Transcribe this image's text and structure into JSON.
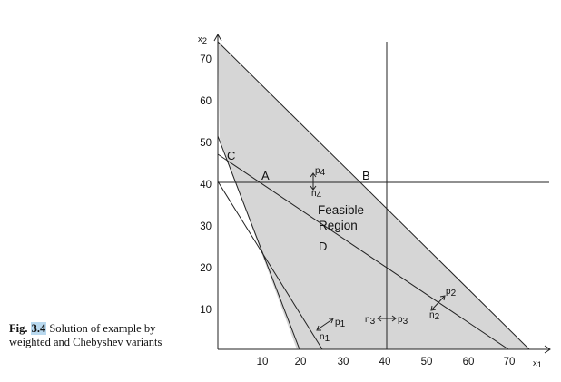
{
  "figure": {
    "caption_label": "Fig.",
    "caption_number": "3.4",
    "caption_text": "Solution of example by weighted and Chebyshev variants"
  },
  "axes": {
    "x_label_main": "x",
    "x_label_sub": "1",
    "y_label_main": "x",
    "y_label_sub": "2",
    "x_ticks": [
      "10",
      "20",
      "30",
      "40",
      "50",
      "60",
      "70"
    ],
    "y_ticks": [
      "10",
      "20",
      "30",
      "40",
      "50",
      "60",
      "70"
    ]
  },
  "points": {
    "A": "A",
    "B": "B",
    "C": "C",
    "D": "D"
  },
  "region_label_line1": "Feasible",
  "region_label_line2": "Region",
  "deviations": {
    "p1": {
      "main": "p",
      "sub": "1"
    },
    "n1": {
      "main": "n",
      "sub": "1"
    },
    "p2": {
      "main": "p",
      "sub": "2"
    },
    "n2": {
      "main": "n",
      "sub": "2"
    },
    "p3": {
      "main": "p",
      "sub": "3"
    },
    "n3": {
      "main": "n",
      "sub": "3"
    },
    "p4": {
      "main": "p",
      "sub": "4"
    },
    "n4": {
      "main": "n",
      "sub": "4"
    }
  },
  "colors": {
    "region_fill": "#d6d6d6",
    "line": "#222222"
  }
}
